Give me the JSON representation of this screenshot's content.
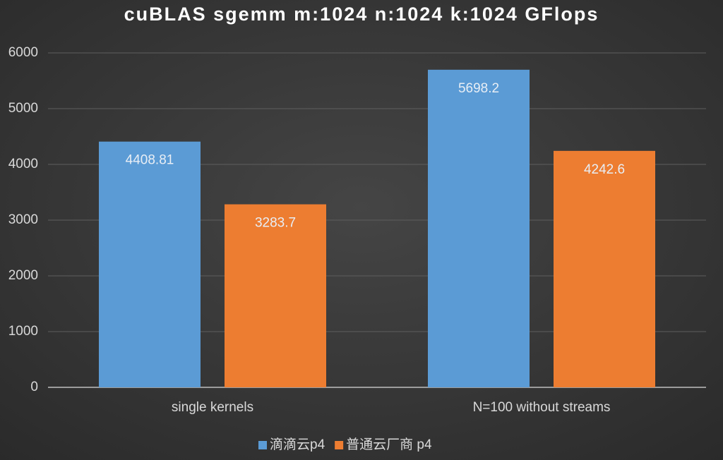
{
  "chart_data": {
    "type": "bar",
    "title": "cuBLAS sgemm m:1024 n:1024 k:1024 GFlops",
    "categories": [
      "single kernels",
      "N=100 without streams"
    ],
    "series": [
      {
        "name": "滴滴云p4",
        "color": "#5b9bd5",
        "values": [
          4408.81,
          5698.2
        ]
      },
      {
        "name": "普通云厂商 p4",
        "color": "#ed7d31",
        "values": [
          3283.7,
          4242.6
        ]
      }
    ],
    "ylim": [
      0,
      6000
    ],
    "yticks": [
      0,
      1000,
      2000,
      3000,
      4000,
      5000,
      6000
    ],
    "grid": true,
    "legend": "bottom"
  }
}
